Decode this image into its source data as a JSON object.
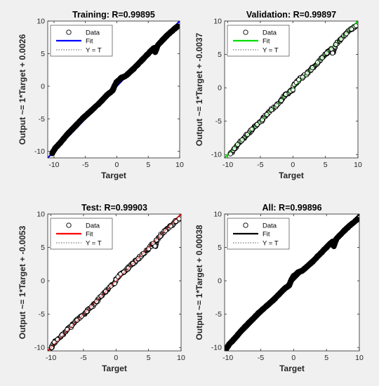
{
  "figure": {
    "background": "#f0f0f0"
  },
  "chart_data": [
    {
      "type": "scatter",
      "title": "Training: R=0.99895",
      "xlabel": "Target",
      "ylabel": "Output ~= 1*Target + 0.0026",
      "xlim": [
        -11,
        10
      ],
      "ylim": [
        -11,
        10
      ],
      "xticks": [
        -10,
        -5,
        0,
        5,
        10
      ],
      "yticks": [
        -10,
        -5,
        0,
        5,
        10
      ],
      "legend": {
        "placement": "top-left",
        "entries": [
          "Data",
          "Fit",
          "Y = T"
        ]
      },
      "fit": {
        "slope": 1,
        "intercept": 0.0026,
        "color": "#0000ff"
      },
      "density": "dense",
      "series": [
        {
          "name": "Data",
          "x": [
            -10.3,
            -9.8,
            -9.2,
            -8.5,
            -7.8,
            -7.0,
            -6.2,
            -5.4,
            -4.6,
            -3.8,
            -3.0,
            -2.2,
            -1.4,
            -0.7,
            -0.3,
            0,
            0.3,
            0.7,
            1.3,
            2.0,
            2.8,
            3.5,
            4.3,
            5.0,
            5.7,
            6.0,
            6.1,
            6.5,
            7.2,
            8.0,
            8.7,
            9.3,
            9.7
          ],
          "y": [
            -10.3,
            -9.5,
            -8.9,
            -8.1,
            -7.3,
            -6.5,
            -5.7,
            -4.9,
            -4.2,
            -3.5,
            -2.8,
            -2.0,
            -1.2,
            -0.7,
            0.2,
            0.7,
            0.9,
            1.3,
            1.5,
            2.1,
            2.8,
            3.5,
            4.3,
            5.0,
            5.7,
            5.9,
            5.2,
            6.3,
            7.0,
            7.8,
            8.4,
            8.9,
            9.2
          ]
        }
      ]
    },
    {
      "type": "scatter",
      "title": "Validation: R=0.99897",
      "xlabel": "Target",
      "ylabel": "Output ~= 1*Target + -0.0037",
      "xlim": [
        -10.5,
        10
      ],
      "ylim": [
        -10.5,
        10
      ],
      "xticks": [
        -10,
        -5,
        0,
        5,
        10
      ],
      "yticks": [
        -10,
        -5,
        0,
        5,
        10
      ],
      "legend": {
        "placement": "top-left",
        "entries": [
          "Data",
          "Fit",
          "Y = T"
        ]
      },
      "fit": {
        "slope": 1,
        "intercept": -0.0037,
        "color": "#00dd00"
      },
      "density": "medium",
      "series": [
        {
          "name": "Data",
          "x": [
            -9.6,
            -9.0,
            -8.5,
            -7.8,
            -7.0,
            -6.3,
            -5.5,
            -4.7,
            -4.0,
            -3.3,
            -2.5,
            -1.8,
            -1.1,
            -0.4,
            0,
            0.2,
            0.5,
            0.9,
            1.5,
            2.2,
            3.0,
            3.8,
            4.5,
            5.2,
            5.9,
            6.1,
            6.6,
            7.4,
            8.2,
            9.0,
            9.7
          ],
          "y": [
            -9.9,
            -9.1,
            -8.5,
            -7.8,
            -7.0,
            -6.2,
            -5.5,
            -4.8,
            -4.0,
            -3.3,
            -2.6,
            -1.9,
            -1.0,
            -0.5,
            -0.3,
            0.5,
            0.8,
            1.2,
            1.6,
            2.2,
            3.0,
            3.8,
            4.5,
            5.2,
            5.8,
            5.2,
            6.5,
            7.3,
            8.1,
            8.8,
            9.3
          ]
        }
      ]
    },
    {
      "type": "scatter",
      "title": "Test: R=0.99903",
      "xlabel": "Target",
      "ylabel": "Output ~= 1*Target + -0.0053",
      "xlim": [
        -10.5,
        10
      ],
      "ylim": [
        -10.5,
        10
      ],
      "xticks": [
        -10,
        -5,
        0,
        5,
        10
      ],
      "yticks": [
        -10,
        -5,
        0,
        5,
        10
      ],
      "legend": {
        "placement": "top-left",
        "entries": [
          "Data",
          "Fit",
          "Y = T"
        ]
      },
      "fit": {
        "slope": 1,
        "intercept": -0.0053,
        "color": "#ff0000"
      },
      "density": "medium",
      "series": [
        {
          "name": "Data",
          "x": [
            -9.9,
            -9.5,
            -9.0,
            -8.3,
            -7.5,
            -6.8,
            -6.0,
            -5.3,
            -4.5,
            -3.8,
            -3.0,
            -2.3,
            -1.6,
            -0.8,
            -0.2,
            0,
            0.3,
            0.7,
            1.2,
            1.9,
            2.6,
            3.4,
            4.2,
            5.0,
            5.7,
            6.0,
            6.2,
            6.8,
            7.6,
            8.4,
            9.2,
            9.7
          ],
          "y": [
            -10.0,
            -9.2,
            -8.8,
            -8.1,
            -7.3,
            -6.7,
            -5.9,
            -5.3,
            -4.6,
            -3.9,
            -3.1,
            -2.3,
            -1.6,
            -0.8,
            -0.4,
            0.2,
            0.6,
            1.0,
            1.3,
            1.9,
            2.6,
            3.3,
            4.1,
            4.8,
            5.6,
            5.2,
            6.1,
            6.7,
            7.5,
            8.2,
            8.9,
            9.3
          ]
        }
      ]
    },
    {
      "type": "scatter",
      "title": "All: R=0.99896",
      "xlabel": "Target",
      "ylabel": "Output ~= 1*Target + 0.00038",
      "xlim": [
        -10.5,
        10
      ],
      "ylim": [
        -10.5,
        10
      ],
      "xticks": [
        -10,
        -5,
        0,
        5,
        10
      ],
      "yticks": [
        -10,
        -5,
        0,
        5,
        10
      ],
      "legend": {
        "placement": "top-left",
        "entries": [
          "Data",
          "Fit",
          "Y = T"
        ]
      },
      "fit": {
        "slope": 1,
        "intercept": 0.00038,
        "color": "#000000"
      },
      "density": "dense",
      "series": [
        {
          "name": "Data",
          "x": [
            -10.3,
            -9.8,
            -9.2,
            -8.5,
            -7.8,
            -7.0,
            -6.2,
            -5.4,
            -4.6,
            -3.8,
            -3.0,
            -2.2,
            -1.4,
            -0.7,
            -0.3,
            0,
            0.3,
            0.7,
            1.3,
            2.0,
            2.8,
            3.5,
            4.3,
            5.0,
            5.7,
            6.0,
            6.1,
            6.5,
            7.2,
            8.0,
            8.7,
            9.3,
            9.7
          ],
          "y": [
            -10.3,
            -9.5,
            -8.9,
            -8.1,
            -7.3,
            -6.5,
            -5.7,
            -4.9,
            -4.2,
            -3.5,
            -2.8,
            -2.0,
            -1.2,
            -0.7,
            0.2,
            0.7,
            0.9,
            1.3,
            1.5,
            2.1,
            2.8,
            3.5,
            4.3,
            5.0,
            5.7,
            5.9,
            5.2,
            6.3,
            7.0,
            7.8,
            8.4,
            8.9,
            9.2
          ]
        }
      ]
    }
  ]
}
